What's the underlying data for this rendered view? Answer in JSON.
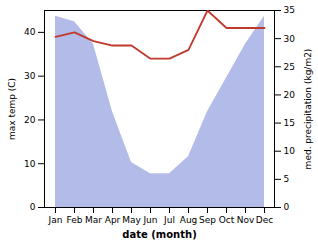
{
  "chart_data": {
    "type": "line",
    "xlabel": "date (month)",
    "ylabel": "max temp (C)",
    "y2label": "med. precipitation (kg/m2)",
    "categories": [
      "Jan",
      "Feb",
      "Mar",
      "Apr",
      "May",
      "Jun",
      "Jul",
      "Aug",
      "Sep",
      "Oct",
      "Nov",
      "Dec"
    ],
    "series": [
      {
        "type": "area",
        "axis": "y2",
        "color": "#b3bce8",
        "values": [
          34,
          33,
          29,
          17,
          8,
          6,
          6,
          9,
          17,
          23,
          29,
          34
        ]
      },
      {
        "type": "line",
        "color": "#c0392b",
        "values": [
          39,
          40,
          38,
          37,
          37,
          34,
          34,
          36,
          45,
          41,
          41,
          41
        ]
      }
    ],
    "ylim": [
      0,
      45
    ],
    "yticks": [
      0,
      10,
      20,
      30,
      40
    ],
    "y2lim": [
      0,
      35
    ],
    "y2ticks": [
      0,
      5,
      10,
      15,
      20,
      25,
      30,
      35
    ]
  }
}
